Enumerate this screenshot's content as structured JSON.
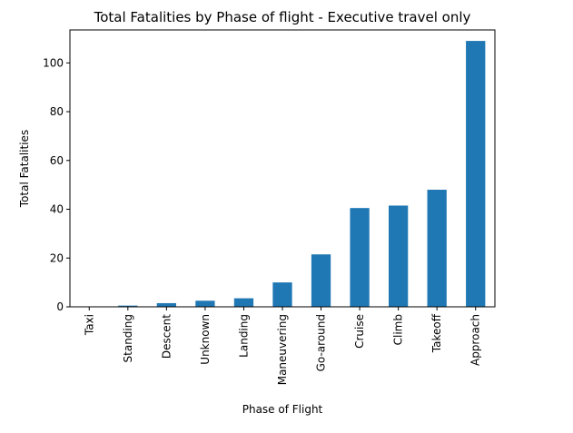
{
  "chart_data": {
    "type": "bar",
    "title": "Total Fatalities by Phase of flight - Executive travel only",
    "xlabel": "Phase of Flight",
    "ylabel": "Total Fatalities",
    "categories": [
      "Taxi",
      "Standing",
      "Descent",
      "Unknown",
      "Landing",
      "Maneuvering",
      "Go-around",
      "Cruise",
      "Climb",
      "Takeoff",
      "Approach"
    ],
    "values": [
      0,
      0.5,
      1.5,
      2.5,
      3.5,
      10,
      21.5,
      40.5,
      41.5,
      48,
      109
    ],
    "ylim": [
      0,
      113.5
    ],
    "yticks": [
      "0",
      "20",
      "40",
      "60",
      "80",
      "100"
    ],
    "bar_color": "#1f77b4",
    "grid": false
  }
}
